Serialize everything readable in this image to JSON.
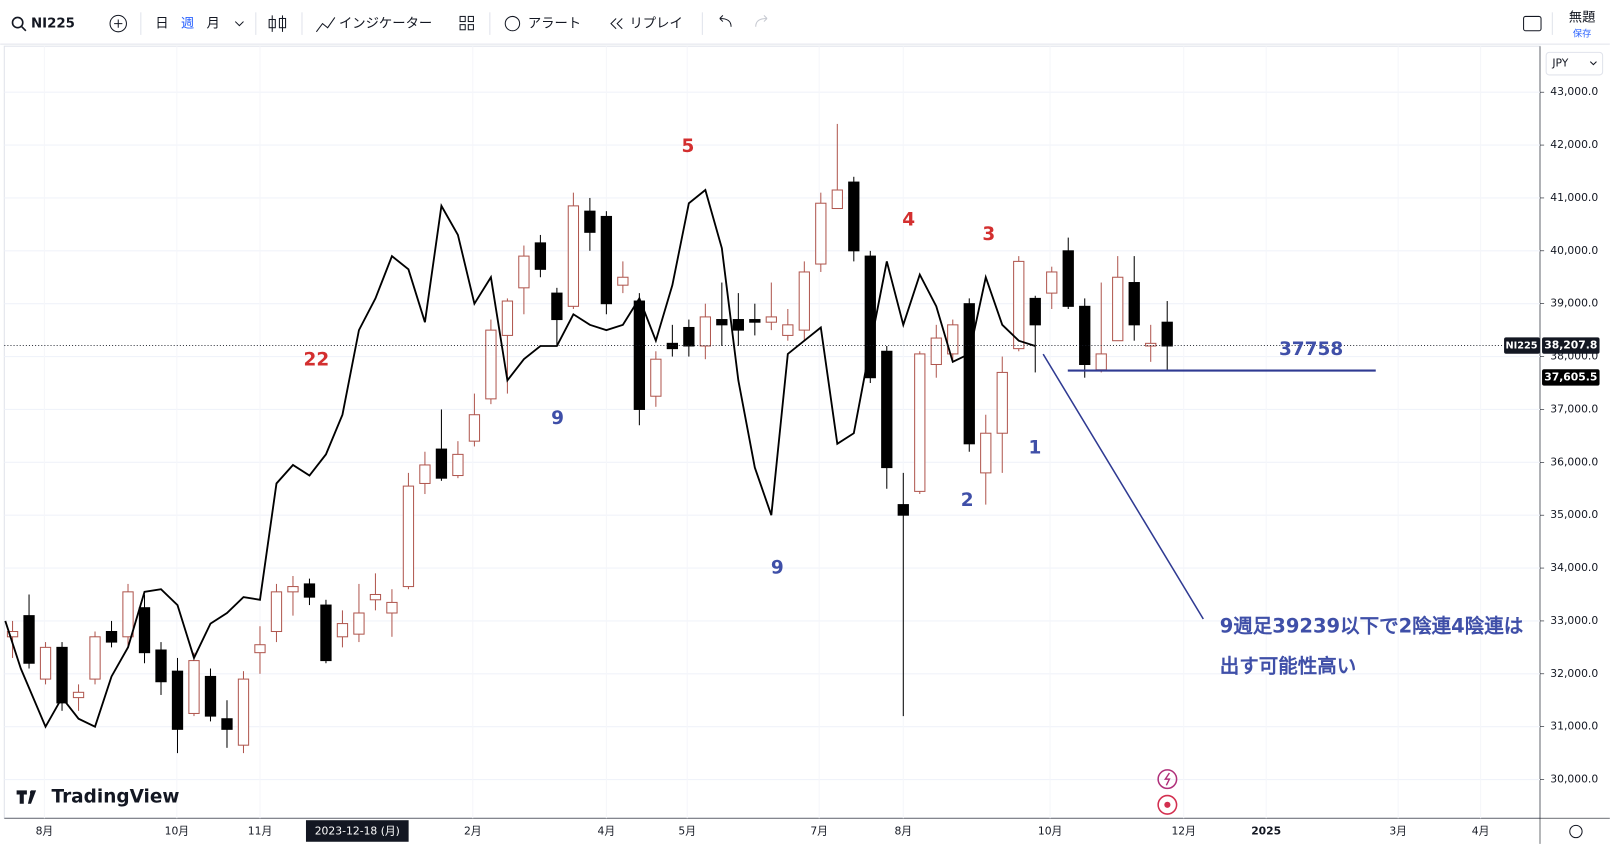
{
  "toolbar": {
    "symbol": "NI225",
    "intervals": [
      "日",
      "週",
      "月"
    ],
    "indicators": "インジケーター",
    "alert": "アラート",
    "replay": "リプレイ",
    "layout_name": "無題",
    "save": "保存"
  },
  "chart_data": {
    "type": "candlestick",
    "open": [
      32700,
      33100,
      31900,
      32500,
      31550,
      31900,
      32800,
      32700,
      33250,
      32450,
      32050,
      31250,
      31950,
      31150,
      30650,
      32400,
      32800,
      33550,
      33700,
      33300,
      32700,
      32750,
      33400,
      33150,
      33650,
      35600,
      36250,
      35750,
      36400,
      37200,
      38400,
      39300,
      40150,
      39200,
      38950,
      40750,
      40650,
      39350,
      39050,
      37250,
      38250,
      38550,
      38200,
      38700,
      38700,
      38700,
      38650,
      38400,
      38500,
      39750,
      40800,
      41300,
      39900,
      38100,
      35200,
      35450,
      37850,
      38050,
      39000,
      35800,
      36550,
      38150,
      39100,
      39200,
      40000,
      38950,
      37750,
      38300,
      39400,
      38200,
      38650
    ],
    "high": [
      33000,
      33500,
      32600,
      32600,
      31800,
      32800,
      33000,
      33700,
      33500,
      32600,
      32300,
      32400,
      32100,
      31500,
      32050,
      32900,
      33700,
      33850,
      33800,
      33400,
      33200,
      33700,
      33900,
      33600,
      35800,
      36200,
      37000,
      36400,
      37300,
      38700,
      39100,
      40100,
      40300,
      39300,
      41100,
      41000,
      40750,
      39800,
      39200,
      38100,
      38600,
      38700,
      39000,
      39400,
      39200,
      39000,
      39400,
      38900,
      39800,
      41100,
      42400,
      41400,
      40000,
      38200,
      35800,
      38100,
      38600,
      38700,
      39100,
      36900,
      38000,
      39900,
      39150,
      39700,
      40250,
      39100,
      39400,
      39900,
      39900,
      38600,
      39050
    ],
    "low": [
      32300,
      32100,
      31800,
      31300,
      31300,
      31800,
      32500,
      32500,
      32200,
      31600,
      30500,
      31200,
      31100,
      30600,
      30500,
      32000,
      32600,
      33100,
      33300,
      32200,
      32500,
      32600,
      33200,
      32700,
      33600,
      35400,
      35650,
      35700,
      36300,
      37100,
      37300,
      38800,
      39500,
      38200,
      38900,
      40000,
      38800,
      39200,
      36700,
      37050,
      38000,
      38000,
      37950,
      38200,
      38200,
      38400,
      38500,
      38300,
      38300,
      39600,
      40800,
      39800,
      37500,
      35500,
      31200,
      35400,
      37600,
      37900,
      36200,
      35200,
      35800,
      38100,
      37700,
      38900,
      38900,
      37600,
      37700,
      38300,
      38300,
      37900,
      37750
    ],
    "close": [
      32800,
      32200,
      32500,
      31450,
      31650,
      32700,
      32600,
      33550,
      32400,
      31850,
      30950,
      32250,
      31200,
      30950,
      31900,
      32550,
      33550,
      33650,
      33450,
      32250,
      32950,
      33150,
      33500,
      33350,
      35550,
      35950,
      35700,
      36150,
      36900,
      38500,
      39050,
      39900,
      39650,
      38700,
      40850,
      40350,
      39000,
      39500,
      37000,
      37950,
      38150,
      38200,
      38750,
      38600,
      38500,
      38650,
      38750,
      38600,
      39600,
      40900,
      41150,
      40000,
      37600,
      35900,
      35000,
      38050,
      38350,
      38600,
      36350,
      36550,
      37700,
      39800,
      38600,
      39600,
      38950,
      37850,
      38050,
      39500,
      38600,
      38250,
      38200
    ],
    "up_color": "#b0574f",
    "down_color": "#000000",
    "overlay": {
      "color": "#000000",
      "x": [
        -0.44,
        0.5,
        2,
        3,
        4,
        5,
        6,
        7,
        8,
        9,
        10,
        11,
        12,
        13,
        14,
        15,
        16,
        17,
        18,
        19,
        20,
        21,
        22,
        23,
        24,
        25,
        26,
        27,
        28,
        29,
        30,
        31,
        32,
        33,
        34,
        35,
        36,
        37,
        38,
        39,
        40,
        41,
        42,
        43,
        44,
        45,
        46,
        47,
        48,
        49,
        50,
        51,
        52,
        53,
        54,
        55,
        56,
        57,
        58,
        59,
        60,
        61,
        62
      ],
      "values": [
        33000,
        32100,
        31000,
        31550,
        31150,
        31000,
        31950,
        32500,
        33550,
        33600,
        33300,
        32300,
        32950,
        33150,
        33450,
        33400,
        35600,
        35950,
        35750,
        36150,
        36900,
        38500,
        39100,
        39900,
        39650,
        38650,
        40850,
        40300,
        39000,
        39500,
        37550,
        37950,
        38200,
        38200,
        38800,
        38600,
        38500,
        38600,
        39100,
        38300,
        39350,
        40900,
        41150,
        40050,
        37550,
        35900,
        35000,
        38050,
        38300,
        38550,
        36350,
        36550,
        38200,
        39800,
        38600,
        39550,
        38950,
        37900,
        38050,
        39500,
        38600,
        38300,
        38200
      ]
    },
    "xlim": [
      -0.5,
      92.6
    ],
    "xticks": [
      {
        "value": 1.93,
        "label": "8月"
      },
      {
        "value": 9.96,
        "label": "10月"
      },
      {
        "value": 15,
        "label": "11月"
      },
      {
        "value": 27.9,
        "label": "2月"
      },
      {
        "value": 36,
        "label": "4月"
      },
      {
        "value": 40.9,
        "label": "5月"
      },
      {
        "value": 48.9,
        "label": "7月"
      },
      {
        "value": 54,
        "label": "8月"
      },
      {
        "value": 62.9,
        "label": "10月"
      },
      {
        "value": 71,
        "label": "12月"
      },
      {
        "value": 76,
        "label": "2025"
      },
      {
        "value": 84,
        "label": "3月"
      },
      {
        "value": 89,
        "label": "4月"
      }
    ],
    "highlight_tick": {
      "value": 20.9,
      "label": "2023-12-18 (月)"
    },
    "ylim": [
      29270,
      43870
    ],
    "yticks": [
      {
        "value": 30000,
        "label": "30,000.0"
      },
      {
        "value": 31000,
        "label": "31,000.0"
      },
      {
        "value": 32000,
        "label": "32,000.0"
      },
      {
        "value": 33000,
        "label": "33,000.0"
      },
      {
        "value": 34000,
        "label": "34,000.0"
      },
      {
        "value": 35000,
        "label": "35,000.0"
      },
      {
        "value": 36000,
        "label": "36,000.0"
      },
      {
        "value": 37000,
        "label": "37,000.0"
      },
      {
        "value": 38000,
        "label": "38,000.0"
      },
      {
        "value": 39000,
        "label": "39,000.0"
      },
      {
        "value": 40000,
        "label": "40,000.0"
      },
      {
        "value": 41000,
        "label": "41,000.0"
      },
      {
        "value": 42000,
        "label": "42,000.0"
      },
      {
        "value": 43000,
        "label": "43,000.0"
      }
    ],
    "grid": true,
    "currency": "JPY",
    "price_labels": [
      {
        "name": "NI225",
        "value": 38207.8,
        "label": "38,207.8"
      },
      {
        "value": 37605.5,
        "label": "37,605.5"
      }
    ],
    "annotations": [
      {
        "text": "22",
        "color": "#d32f2f"
      },
      {
        "text": "5",
        "color": "#d32f2f"
      },
      {
        "text": "4",
        "color": "#d32f2f"
      },
      {
        "text": "3",
        "color": "#d32f2f"
      },
      {
        "text": "9",
        "color": "#3f4fa8"
      },
      {
        "text": "9",
        "color": "#3f4fa8"
      },
      {
        "text": "2",
        "color": "#3f4fa8"
      },
      {
        "text": "1",
        "color": "#3f4fa8"
      },
      {
        "text": "37758",
        "color": "#3f4fa8"
      },
      {
        "text": "9週足39239以下で2陰連4陰連は",
        "color": "#3f4fa8"
      },
      {
        "text": "出す可能性高い",
        "color": "#3f4fa8"
      }
    ],
    "brand": "TradingView"
  }
}
